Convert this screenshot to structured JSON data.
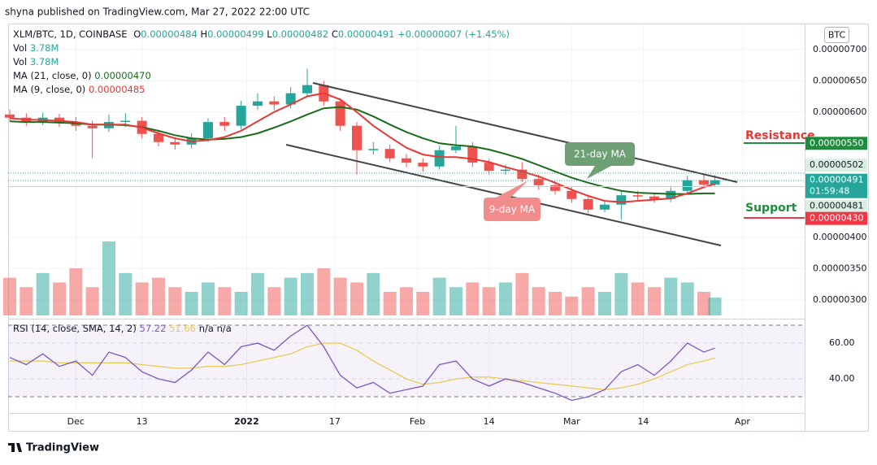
{
  "header": {
    "publisher": "shyna published on TradingView.com, Mar 27, 2022 22:00 UTC",
    "symbol": "XLM/BTC, 1D, COINBASE",
    "ohlc": [
      "O",
      "0.00000484",
      "H",
      "0.00000499",
      "L",
      "0.00000482",
      "C",
      "0.00000491",
      "+0.00000007 (+1.45%)"
    ],
    "currency_button": "BTC",
    "logo": "TradingView"
  },
  "annotations": {
    "resistance": "Resistance",
    "support": "Support",
    "ma21": "21-day MA",
    "ma9": "9-day MA"
  },
  "chart_data": [
    {
      "type": "candlestick",
      "x": [
        "2021-11-19",
        "2021-11-22",
        "2021-11-25",
        "2021-11-28",
        "2021-12-01",
        "2021-12-04",
        "2021-12-07",
        "2021-12-10",
        "2021-12-13",
        "2021-12-16",
        "2021-12-19",
        "2021-12-22",
        "2021-12-25",
        "2021-12-28",
        "2021-12-31",
        "2022-01-03",
        "2022-01-06",
        "2022-01-09",
        "2022-01-12",
        "2022-01-15",
        "2022-01-18",
        "2022-01-21",
        "2022-01-24",
        "2022-01-27",
        "2022-01-30",
        "2022-02-02",
        "2022-02-05",
        "2022-02-08",
        "2022-02-11",
        "2022-02-14",
        "2022-02-17",
        "2022-02-20",
        "2022-02-23",
        "2022-02-26",
        "2022-03-01",
        "2022-03-04",
        "2022-03-07",
        "2022-03-10",
        "2022-03-13",
        "2022-03-16",
        "2022-03-19",
        "2022-03-22",
        "2022-03-25",
        "2022-03-27"
      ],
      "open": [
        5.96e-06,
        5.91e-06,
        5.84e-06,
        5.91e-06,
        5.84e-06,
        5.78e-06,
        5.74e-06,
        5.84e-06,
        5.86e-06,
        5.65e-06,
        5.52e-06,
        5.48e-06,
        5.58e-06,
        5.84e-06,
        5.78e-06,
        6.1e-06,
        6.17e-06,
        6.12e-06,
        6.3e-06,
        6.43e-06,
        6.17e-06,
        5.78e-06,
        5.39e-06,
        5.41e-06,
        5.26e-06,
        5.19e-06,
        5.13e-06,
        5.39e-06,
        5.45e-06,
        5.19e-06,
        5.06e-06,
        5.08e-06,
        4.93e-06,
        4.83e-06,
        4.74e-06,
        4.61e-06,
        4.44e-06,
        4.52e-06,
        4.67e-06,
        4.65e-06,
        4.61e-06,
        4.74e-06,
        4.91e-06,
        4.84e-06
      ],
      "high": [
        6.04e-06,
        5.98e-06,
        5.99e-06,
        5.97e-06,
        5.92e-06,
        5.86e-06,
        5.96e-06,
        5.98e-06,
        5.92e-06,
        5.71e-06,
        5.6e-06,
        5.66e-06,
        5.9e-06,
        5.92e-06,
        6.18e-06,
        6.3e-06,
        6.25e-06,
        6.4e-06,
        6.69e-06,
        6.5e-06,
        6.22e-06,
        5.84e-06,
        5.52e-06,
        5.48e-06,
        5.33e-06,
        5.26e-06,
        5.46e-06,
        5.78e-06,
        5.52e-06,
        5.25e-06,
        5.16e-06,
        5.2e-06,
        5e-06,
        4.9e-06,
        4.8e-06,
        4.68e-06,
        4.6e-06,
        4.74e-06,
        4.74e-06,
        4.7e-06,
        4.8e-06,
        4.98e-06,
        5e-06,
        4.99e-06
      ],
      "low": [
        5.85e-06,
        5.78e-06,
        5.79e-06,
        5.76e-06,
        5.7e-06,
        5.26e-06,
        5.68e-06,
        5.76e-06,
        5.58e-06,
        5.45e-06,
        5.4e-06,
        5.42e-06,
        5.52e-06,
        5.7e-06,
        5.72e-06,
        6.04e-06,
        6.03e-06,
        6.06e-06,
        6.24e-06,
        6.1e-06,
        5.7e-06,
        5e-06,
        5.32e-06,
        5.2e-06,
        5.12e-06,
        5.05e-06,
        5.08e-06,
        5.34e-06,
        5.12e-06,
        5e-06,
        5e-06,
        4.88e-06,
        4.76e-06,
        4.68e-06,
        4.55e-06,
        4.38e-06,
        4.4e-06,
        4.28e-06,
        4.58e-06,
        4.55e-06,
        4.56e-06,
        4.7e-06,
        4.78e-06,
        4.82e-06
      ],
      "close": [
        5.91e-06,
        5.84e-06,
        5.91e-06,
        5.84e-06,
        5.78e-06,
        5.74e-06,
        5.84e-06,
        5.86e-06,
        5.65e-06,
        5.52e-06,
        5.48e-06,
        5.58e-06,
        5.84e-06,
        5.78e-06,
        6.1e-06,
        6.17e-06,
        6.12e-06,
        6.3e-06,
        6.43e-06,
        6.17e-06,
        5.78e-06,
        5.39e-06,
        5.41e-06,
        5.26e-06,
        5.19e-06,
        5.13e-06,
        5.39e-06,
        5.45e-06,
        5.19e-06,
        5.06e-06,
        5.08e-06,
        4.93e-06,
        4.83e-06,
        4.74e-06,
        4.61e-06,
        4.44e-06,
        4.52e-06,
        4.67e-06,
        4.65e-06,
        4.61e-06,
        4.74e-06,
        4.91e-06,
        4.84e-06,
        4.91e-06
      ],
      "up_color": "#26a69a",
      "down_color": "#ef5350",
      "volume_name": "Vol",
      "volume_label": "3.78M",
      "volume": [
        8,
        6,
        9,
        7,
        10,
        6,
        15.7,
        9,
        7,
        8,
        6,
        5,
        7,
        6,
        5,
        9,
        6,
        8,
        9,
        10,
        8,
        7,
        9,
        5,
        6,
        5,
        8,
        6,
        7,
        6,
        7,
        9,
        6,
        5,
        4,
        6,
        5,
        9,
        7,
        6,
        8,
        7,
        5,
        3.78
      ],
      "series": [
        {
          "name": "MA (21, close, 0)",
          "legend_value": "0.00000470",
          "color": "#1b6b1b",
          "values": [
            5.85e-06,
            5.84e-06,
            5.84e-06,
            5.83e-06,
            5.82e-06,
            5.8e-06,
            5.8e-06,
            5.79e-06,
            5.76e-06,
            5.7e-06,
            5.63e-06,
            5.58e-06,
            5.56e-06,
            5.57e-06,
            5.6e-06,
            5.66e-06,
            5.75e-06,
            5.85e-06,
            5.96e-06,
            6.06e-06,
            6.08e-06,
            6.04e-06,
            5.93e-06,
            5.8e-06,
            5.68e-06,
            5.58e-06,
            5.5e-06,
            5.47e-06,
            5.45e-06,
            5.4e-06,
            5.33e-06,
            5.25e-06,
            5.15e-06,
            5.05e-06,
            4.95e-06,
            4.87e-06,
            4.8e-06,
            4.74e-06,
            4.71e-06,
            4.7e-06,
            4.69e-06,
            4.69e-06,
            4.7e-06,
            4.7e-06
          ]
        },
        {
          "name": "MA (9, close, 0)",
          "legend_value": "0.00000485",
          "color": "#e53935",
          "values": [
            5.9e-06,
            5.88e-06,
            5.87e-06,
            5.86e-06,
            5.84e-06,
            5.8e-06,
            5.8e-06,
            5.8e-06,
            5.75e-06,
            5.66e-06,
            5.58e-06,
            5.53e-06,
            5.55e-06,
            5.6e-06,
            5.7e-06,
            5.85e-06,
            6e-06,
            6.12e-06,
            6.25e-06,
            6.3e-06,
            6.2e-06,
            6e-06,
            5.78e-06,
            5.6e-06,
            5.43e-06,
            5.32e-06,
            5.28e-06,
            5.28e-06,
            5.25e-06,
            5.2e-06,
            5.12e-06,
            5.05e-06,
            4.97e-06,
            4.87e-06,
            4.76e-06,
            4.66e-06,
            4.58e-06,
            4.56e-06,
            4.58e-06,
            4.6e-06,
            4.62e-06,
            4.7e-06,
            4.8e-06,
            4.85e-06
          ]
        }
      ],
      "ylim": [
        2.75e-06,
        7.4e-06
      ],
      "yticks": [
        {
          "value": 3e-06,
          "label": "0.00000300"
        },
        {
          "value": 3.5e-06,
          "label": "0.00000350"
        },
        {
          "value": 4e-06,
          "label": "0.00000400"
        },
        {
          "value": 6e-06,
          "label": "0.00000600"
        },
        {
          "value": 6.5e-06,
          "label": "0.00000650"
        },
        {
          "value": 7e-06,
          "label": "0.00000700"
        }
      ],
      "price_labels": [
        {
          "value": 5.5e-06,
          "label": "0.00000550",
          "color": "#1e8e3e",
          "text_color": "#ffffff"
        },
        {
          "value": 5.02e-06,
          "label": "0.00000502",
          "color": "#dcefe3",
          "text_color": "#131722"
        },
        {
          "value": 4.91e-06,
          "label": "0.00000491",
          "color": "#26a69a",
          "text_color": "#ffffff",
          "countdown": "01:59:48"
        },
        {
          "value": 4.81e-06,
          "label": "0.00000481",
          "color": "#dcefe3",
          "text_color": "#131722"
        },
        {
          "value": 4.3e-06,
          "label": "0.00000430",
          "color": "#f23645",
          "text_color": "#ffffff"
        }
      ],
      "xlim": [
        "2021-11-19",
        "2022-04-12"
      ],
      "xticks": [
        {
          "value": "2021-12-01",
          "label": "Dec"
        },
        {
          "value": "2021-12-13",
          "label": "13"
        },
        {
          "value": "2022-01-01",
          "label": "2022"
        },
        {
          "value": "2022-01-17",
          "label": "17"
        },
        {
          "value": "2022-02-01",
          "label": "Feb"
        },
        {
          "value": "2022-02-14",
          "label": "14"
        },
        {
          "value": "2022-03-01",
          "label": "Mar"
        },
        {
          "value": "2022-03-14",
          "label": "14"
        },
        {
          "value": "2022-04-01",
          "label": "Apr"
        }
      ],
      "grid": true
    },
    {
      "type": "line",
      "title": "RSI (14, close, SMA, 14, 2)",
      "na_values": [
        "n/a",
        "n/a"
      ],
      "series": [
        {
          "name": "RSI",
          "color": "#7e57c2",
          "values": [
            52,
            48,
            54,
            47,
            50,
            42,
            55,
            52,
            44,
            40,
            38,
            45,
            55,
            48,
            58,
            60,
            56,
            64,
            70,
            58,
            42,
            35,
            38,
            32,
            34,
            36,
            48,
            50,
            40,
            36,
            40,
            38,
            35,
            32,
            28,
            30,
            34,
            44,
            48,
            42,
            50,
            60,
            55,
            57.22
          ]
        },
        {
          "name": "SMA",
          "color": "#e8cb53",
          "values": [
            50,
            50,
            50,
            49,
            49,
            49,
            49,
            49,
            48,
            47,
            46,
            46,
            47,
            47,
            48,
            50,
            52,
            54,
            58,
            60,
            60,
            56,
            50,
            45,
            40,
            37,
            38,
            40,
            41,
            41,
            40,
            39,
            38,
            37,
            36,
            35,
            34,
            35,
            37,
            40,
            44,
            48,
            50,
            51.66
          ]
        }
      ],
      "ylim": [
        22.3,
        72.3
      ],
      "yticks": [
        {
          "value": 60,
          "label": "60.00"
        },
        {
          "value": 40,
          "label": "40.00"
        }
      ],
      "bands": [
        30,
        70
      ],
      "band_color": "#7e57c2"
    }
  ]
}
